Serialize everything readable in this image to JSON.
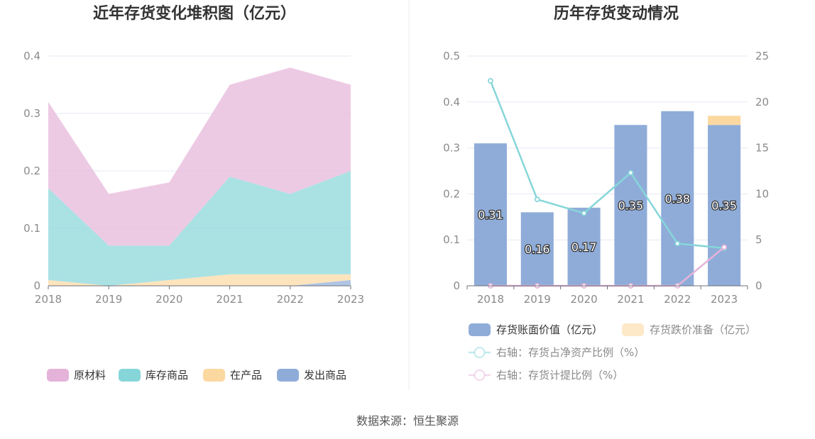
{
  "source_note": "数据来源：恒生聚源",
  "chart_data": [
    {
      "type": "area",
      "stacked": true,
      "title": "近年存货变化堆积图（亿元）",
      "x": [
        "2018",
        "2019",
        "2020",
        "2021",
        "2022",
        "2023"
      ],
      "ylim": [
        0,
        0.4
      ],
      "yticks": [
        "0",
        "0.1",
        "0.2",
        "0.3",
        "0.4"
      ],
      "grid": true,
      "legend_position": "bottom",
      "series": [
        {
          "name": "发出商品",
          "color": "#8facd9",
          "values": [
            0,
            0,
            0,
            0,
            0,
            0.01
          ]
        },
        {
          "name": "在产品",
          "color": "#fcd8a1",
          "values": [
            0.01,
            0,
            0.01,
            0.02,
            0.02,
            0.01
          ]
        },
        {
          "name": "库存商品",
          "color": "#86d6d9",
          "values": [
            0.16,
            0.07,
            0.06,
            0.17,
            0.14,
            0.18
          ]
        },
        {
          "name": "原材料",
          "color": "#e5b3d9",
          "values": [
            0.15,
            0.09,
            0.11,
            0.16,
            0.22,
            0.15
          ]
        }
      ]
    },
    {
      "type": "bar",
      "title": "历年存货变动情况",
      "categories": [
        "2018",
        "2019",
        "2020",
        "2021",
        "2022",
        "2023"
      ],
      "ylim": [
        0,
        0.5
      ],
      "yticks": [
        "0",
        "0.1",
        "0.2",
        "0.3",
        "0.4",
        "0.5"
      ],
      "y2lim": [
        0,
        25
      ],
      "y2ticks": [
        "0",
        "5",
        "10",
        "15",
        "20",
        "25"
      ],
      "grid": true,
      "legend_position": "bottom",
      "bars": [
        {
          "name": "存货账面价值（亿元）",
          "color": "#8facd9",
          "values": [
            0.31,
            0.16,
            0.17,
            0.35,
            0.38,
            0.35
          ],
          "labels": [
            "0.31",
            "0.16",
            "0.17",
            "0.35",
            "0.38",
            "0.35"
          ]
        },
        {
          "name": "存货跌价准备（亿元）",
          "color": "#fcd8a1",
          "values": [
            0,
            0,
            0,
            0,
            0,
            0.02
          ]
        }
      ],
      "lines": [
        {
          "name": "右轴：存货占净资产比例（%）",
          "color": "#86d6d9",
          "values": [
            22.3,
            9.4,
            7.9,
            12.3,
            4.6,
            4.1
          ]
        },
        {
          "name": "右轴：存货计提比例（%）",
          "color": "#e5b3d9",
          "values": [
            0,
            0,
            0,
            0,
            0,
            4.2
          ]
        }
      ]
    }
  ]
}
